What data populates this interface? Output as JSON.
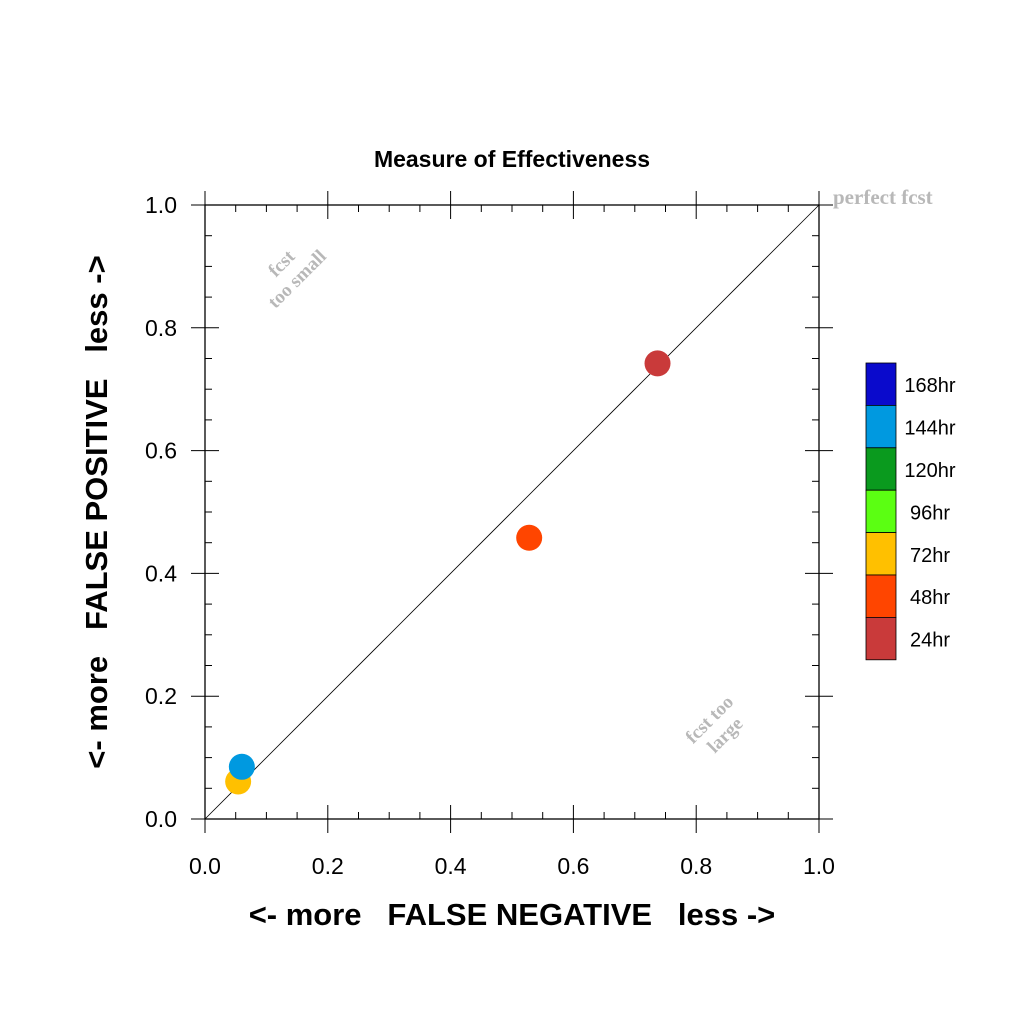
{
  "chart_data": {
    "type": "scatter",
    "title": "Measure of Effectiveness",
    "xlabel": "<- more   FALSE NEGATIVE   less ->",
    "ylabel": "<- more   FALSE POSITIVE   less ->",
    "xlim": [
      0.0,
      1.0
    ],
    "ylim": [
      0.0,
      1.0
    ],
    "x_ticks": [
      "0.0",
      "0.2",
      "0.4",
      "0.6",
      "0.8",
      "1.0"
    ],
    "y_ticks": [
      "0.0",
      "0.2",
      "0.4",
      "0.6",
      "0.8",
      "1.0"
    ],
    "grid": false,
    "diagonal_line": true,
    "annotations": {
      "perfect": "perfect fcst",
      "too_small_1": "fcst",
      "too_small_2": "too small",
      "too_large_1": "fcst too",
      "too_large_2": "large"
    },
    "annotation_color": "#b8b8b8",
    "legend": [
      {
        "label": "168hr",
        "color": "#0a0acc"
      },
      {
        "label": "144hr",
        "color": "#0099e0"
      },
      {
        "label": "120hr",
        "color": "#0a9a1e"
      },
      {
        "label": "96hr",
        "color": "#5bff12"
      },
      {
        "label": "72hr",
        "color": "#ffc000"
      },
      {
        "label": "48hr",
        "color": "#ff4500"
      },
      {
        "label": "24hr",
        "color": "#c93a3a"
      }
    ],
    "legend_placement": "right",
    "points": [
      {
        "label": "24hr",
        "x": 0.737,
        "y": 0.742,
        "color": "#c93a3a"
      },
      {
        "label": "48hr",
        "x": 0.528,
        "y": 0.458,
        "color": "#ff4500"
      },
      {
        "label": "72hr",
        "x": 0.054,
        "y": 0.061,
        "color": "#ffc000"
      },
      {
        "label": "144hr",
        "x": 0.06,
        "y": 0.085,
        "color": "#0099e0"
      }
    ]
  }
}
